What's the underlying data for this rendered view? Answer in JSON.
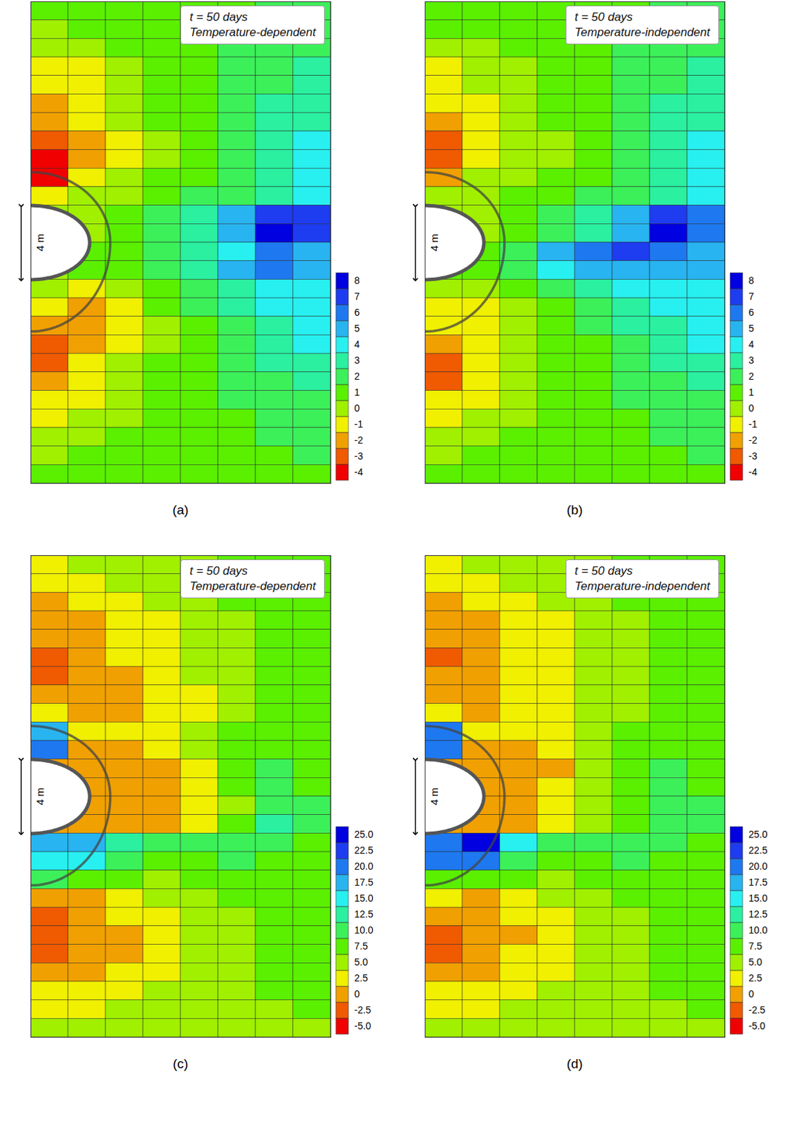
{
  "chart_data": [
    {
      "type": "heatmap",
      "panel_label": "(a)",
      "annotations": [
        "t = 50 days",
        "Temperature-dependent"
      ],
      "scale_bar": {
        "value": 4,
        "label": "4 m"
      },
      "xlim": [
        0,
        10.2
      ],
      "ylim": [
        -13,
        13
      ],
      "tick_labels": false,
      "color_ticks": [
        -4,
        -3,
        -2,
        -1,
        0,
        1,
        2,
        3,
        4,
        5,
        6,
        7,
        8
      ],
      "colors": [
        "#f00000",
        "#f05a00",
        "#f0a000",
        "#f0f000",
        "#a0f000",
        "#5af000",
        "#3cf05a",
        "#2af0a0",
        "#28f0f0",
        "#28b4f0",
        "#1e78f0",
        "#1e3cf0",
        "#0000e0"
      ],
      "cells": [
        [
          1,
          1,
          1,
          1,
          1,
          1,
          2,
          2
        ],
        [
          0,
          1,
          1,
          1,
          1,
          2,
          2,
          2
        ],
        [
          0,
          0,
          1,
          1,
          1,
          2,
          2,
          2
        ],
        [
          -1,
          -1,
          0,
          1,
          1,
          2,
          2,
          3
        ],
        [
          -1,
          -1,
          0,
          1,
          1,
          2,
          2,
          3
        ],
        [
          -2,
          -1,
          0,
          1,
          1,
          2,
          3,
          3
        ],
        [
          -2,
          -1,
          0,
          1,
          1,
          2,
          3,
          3
        ],
        [
          -3,
          -2,
          -1,
          0,
          1,
          2,
          3,
          4
        ],
        [
          -4,
          -2,
          -1,
          0,
          1,
          2,
          3,
          4
        ],
        [
          -4,
          -1,
          0,
          1,
          1,
          2,
          3,
          4
        ],
        [
          -1,
          0,
          0,
          1,
          2,
          2,
          3,
          4
        ],
        [
          0,
          0,
          1,
          2,
          3,
          5,
          7,
          7
        ],
        [
          null,
          0,
          1,
          2,
          3,
          5,
          8,
          7
        ],
        [
          null,
          1,
          1,
          2,
          3,
          4,
          6,
          5
        ],
        [
          0,
          1,
          1,
          2,
          3,
          5,
          6,
          5
        ],
        [
          0,
          -1,
          0,
          1,
          2,
          3,
          4,
          4
        ],
        [
          -1,
          -2,
          -1,
          1,
          2,
          3,
          4,
          4
        ],
        [
          -2,
          -2,
          -1,
          0,
          1,
          2,
          3,
          4
        ],
        [
          -3,
          -2,
          -1,
          0,
          1,
          2,
          3,
          4
        ],
        [
          -3,
          -1,
          0,
          1,
          1,
          2,
          3,
          3
        ],
        [
          -2,
          -1,
          0,
          1,
          1,
          2,
          2,
          3
        ],
        [
          -1,
          -1,
          0,
          1,
          1,
          2,
          2,
          2
        ],
        [
          -1,
          0,
          0,
          1,
          1,
          1,
          2,
          2
        ],
        [
          0,
          0,
          1,
          1,
          1,
          1,
          2,
          2
        ],
        [
          0,
          1,
          1,
          1,
          1,
          1,
          1,
          2
        ],
        [
          1,
          1,
          1,
          1,
          1,
          1,
          1,
          1
        ]
      ]
    },
    {
      "type": "heatmap",
      "panel_label": "(b)",
      "annotations": [
        "t = 50 days",
        "Temperature-independent"
      ],
      "scale_bar": {
        "value": 4,
        "label": "4 m"
      },
      "xlim": [
        0,
        10.2
      ],
      "ylim": [
        -13,
        13
      ],
      "tick_labels": false,
      "color_ticks": [
        -4,
        -3,
        -2,
        -1,
        0,
        1,
        2,
        3,
        4,
        5,
        6,
        7,
        8
      ],
      "colors": [
        "#f00000",
        "#f05a00",
        "#f0a000",
        "#f0f000",
        "#a0f000",
        "#5af000",
        "#3cf05a",
        "#2af0a0",
        "#28f0f0",
        "#28b4f0",
        "#1e78f0",
        "#1e3cf0",
        "#0000e0"
      ],
      "cells": [
        [
          1,
          1,
          1,
          1,
          1,
          1,
          2,
          2
        ],
        [
          1,
          1,
          1,
          1,
          1,
          2,
          2,
          2
        ],
        [
          0,
          0,
          1,
          1,
          1,
          2,
          2,
          2
        ],
        [
          -1,
          0,
          0,
          1,
          1,
          2,
          2,
          3
        ],
        [
          -1,
          0,
          0,
          1,
          1,
          2,
          2,
          3
        ],
        [
          -1,
          -1,
          0,
          1,
          1,
          2,
          3,
          3
        ],
        [
          -2,
          -1,
          0,
          1,
          1,
          2,
          3,
          3
        ],
        [
          -3,
          -1,
          0,
          0,
          1,
          2,
          3,
          4
        ],
        [
          -3,
          -1,
          0,
          0,
          1,
          2,
          3,
          4
        ],
        [
          -2,
          0,
          0,
          1,
          1,
          2,
          3,
          4
        ],
        [
          0,
          0,
          1,
          1,
          2,
          2,
          3,
          4
        ],
        [
          0,
          0,
          1,
          2,
          3,
          5,
          7,
          6
        ],
        [
          null,
          0,
          1,
          2,
          3,
          5,
          8,
          6
        ],
        [
          null,
          1,
          2,
          5,
          6,
          7,
          6,
          5
        ],
        [
          1,
          1,
          2,
          4,
          5,
          5,
          5,
          5
        ],
        [
          0,
          0,
          1,
          2,
          3,
          4,
          4,
          4
        ],
        [
          -1,
          -1,
          0,
          1,
          2,
          3,
          4,
          4
        ],
        [
          -1,
          -1,
          0,
          1,
          2,
          3,
          3,
          4
        ],
        [
          -2,
          -1,
          0,
          1,
          1,
          2,
          3,
          4
        ],
        [
          -3,
          -1,
          0,
          1,
          1,
          2,
          3,
          3
        ],
        [
          -3,
          -1,
          0,
          1,
          1,
          2,
          2,
          3
        ],
        [
          -1,
          -1,
          0,
          1,
          1,
          2,
          2,
          2
        ],
        [
          -1,
          0,
          0,
          1,
          1,
          1,
          2,
          2
        ],
        [
          0,
          0,
          1,
          1,
          1,
          1,
          2,
          2
        ],
        [
          0,
          1,
          1,
          1,
          1,
          1,
          1,
          2
        ],
        [
          1,
          1,
          1,
          1,
          1,
          1,
          1,
          1
        ]
      ]
    },
    {
      "type": "heatmap",
      "panel_label": "(c)",
      "annotations": [
        "t = 50 days",
        "Temperature-dependent"
      ],
      "scale_bar": {
        "value": 4,
        "label": "4 m"
      },
      "xlim": [
        0,
        10.2
      ],
      "ylim": [
        -13,
        13
      ],
      "tick_labels": false,
      "color_ticks": [
        {
          "value": -5,
          "label": "-5.0"
        },
        -2.5,
        0,
        2.5,
        {
          "value": 5,
          "label": "5.0"
        },
        7.5,
        {
          "value": 10,
          "label": "10.0"
        },
        12.5,
        {
          "value": 15,
          "label": "15.0"
        },
        17.5,
        {
          "value": 20,
          "label": "20.0"
        },
        22.5,
        {
          "value": 25,
          "label": "25.0"
        }
      ],
      "colors": [
        "#f00000",
        "#f05a00",
        "#f0a000",
        "#f0f000",
        "#a0f000",
        "#5af000",
        "#3cf05a",
        "#2af0a0",
        "#28f0f0",
        "#28b4f0",
        "#1e78f0",
        "#1e3cf0",
        "#0000e0"
      ],
      "cells": [
        [
          2.5,
          5,
          5,
          5,
          5,
          7.5,
          7.5,
          7.5
        ],
        [
          2.5,
          2.5,
          5,
          5,
          5,
          7.5,
          7.5,
          7.5
        ],
        [
          0,
          2.5,
          2.5,
          5,
          5,
          7.5,
          7.5,
          7.5
        ],
        [
          0,
          0,
          2.5,
          2.5,
          5,
          5,
          7.5,
          7.5
        ],
        [
          0,
          0,
          2.5,
          2.5,
          5,
          5,
          7.5,
          7.5
        ],
        [
          -2.5,
          0,
          2.5,
          2.5,
          5,
          5,
          7.5,
          7.5
        ],
        [
          -2.5,
          0,
          0,
          2.5,
          5,
          5,
          7.5,
          7.5
        ],
        [
          0,
          0,
          0,
          2.5,
          2.5,
          5,
          7.5,
          7.5
        ],
        [
          2.5,
          0,
          0,
          2.5,
          2.5,
          5,
          7.5,
          7.5
        ],
        [
          17.5,
          2.5,
          2.5,
          2.5,
          5,
          7.5,
          7.5,
          7.5
        ],
        [
          20,
          0,
          0,
          2.5,
          5,
          7.5,
          7.5,
          7.5
        ],
        [
          0,
          0,
          0,
          0,
          2.5,
          7.5,
          10,
          7.5
        ],
        [
          null,
          0,
          0,
          0,
          2.5,
          7.5,
          10,
          7.5
        ],
        [
          null,
          0,
          0,
          0,
          2.5,
          5,
          10,
          10
        ],
        [
          0,
          0,
          0,
          0,
          2.5,
          7.5,
          12.5,
          10
        ],
        [
          17.5,
          17.5,
          12.5,
          10,
          10,
          10,
          10,
          7.5
        ],
        [
          15,
          15,
          10,
          7.5,
          7.5,
          10,
          7.5,
          7.5
        ],
        [
          10,
          7.5,
          7.5,
          5,
          7.5,
          7.5,
          7.5,
          7.5
        ],
        [
          0,
          0,
          2.5,
          5,
          5,
          7.5,
          7.5,
          7.5
        ],
        [
          -2.5,
          0,
          2.5,
          2.5,
          5,
          5,
          7.5,
          7.5
        ],
        [
          -2.5,
          0,
          0,
          2.5,
          5,
          5,
          7.5,
          7.5
        ],
        [
          -2.5,
          0,
          0,
          2.5,
          5,
          5,
          7.5,
          7.5
        ],
        [
          0,
          0,
          2.5,
          2.5,
          5,
          5,
          7.5,
          7.5
        ],
        [
          2.5,
          2.5,
          2.5,
          5,
          5,
          5,
          7.5,
          7.5
        ],
        [
          2.5,
          2.5,
          5,
          5,
          5,
          5,
          5,
          7.5
        ],
        [
          5,
          5,
          5,
          5,
          5,
          5,
          5,
          5
        ]
      ]
    },
    {
      "type": "heatmap",
      "panel_label": "(d)",
      "annotations": [
        "t = 50 days",
        "Temperature-independent"
      ],
      "scale_bar": {
        "value": 4,
        "label": "4 m"
      },
      "xlim": [
        0,
        10.2
      ],
      "ylim": [
        -13,
        13
      ],
      "tick_labels": false,
      "color_ticks": [
        {
          "value": -5,
          "label": "-5.0"
        },
        -2.5,
        0,
        2.5,
        {
          "value": 5,
          "label": "5.0"
        },
        7.5,
        {
          "value": 10,
          "label": "10.0"
        },
        12.5,
        {
          "value": 15,
          "label": "15.0"
        },
        17.5,
        {
          "value": 20,
          "label": "20.0"
        },
        22.5,
        {
          "value": 25,
          "label": "25.0"
        }
      ],
      "colors": [
        "#f00000",
        "#f05a00",
        "#f0a000",
        "#f0f000",
        "#a0f000",
        "#5af000",
        "#3cf05a",
        "#2af0a0",
        "#28f0f0",
        "#28b4f0",
        "#1e78f0",
        "#1e3cf0",
        "#0000e0"
      ],
      "cells": [
        [
          2.5,
          5,
          5,
          5,
          5,
          7.5,
          7.5,
          7.5
        ],
        [
          2.5,
          2.5,
          5,
          5,
          5,
          7.5,
          7.5,
          7.5
        ],
        [
          0,
          2.5,
          2.5,
          5,
          5,
          7.5,
          7.5,
          7.5
        ],
        [
          0,
          0,
          2.5,
          2.5,
          5,
          5,
          7.5,
          7.5
        ],
        [
          0,
          0,
          2.5,
          2.5,
          5,
          5,
          7.5,
          7.5
        ],
        [
          -2.5,
          0,
          2.5,
          2.5,
          5,
          5,
          7.5,
          7.5
        ],
        [
          0,
          0,
          2.5,
          2.5,
          5,
          5,
          7.5,
          7.5
        ],
        [
          0,
          0,
          2.5,
          2.5,
          5,
          5,
          7.5,
          7.5
        ],
        [
          2.5,
          0,
          2.5,
          2.5,
          5,
          5,
          7.5,
          7.5
        ],
        [
          20,
          2.5,
          2.5,
          2.5,
          5,
          7.5,
          7.5,
          7.5
        ],
        [
          20,
          0,
          0,
          2.5,
          5,
          7.5,
          7.5,
          7.5
        ],
        [
          0,
          0,
          0,
          0,
          5,
          7.5,
          10,
          7.5
        ],
        [
          null,
          0,
          0,
          2.5,
          5,
          7.5,
          10,
          7.5
        ],
        [
          null,
          0,
          0,
          2.5,
          5,
          7.5,
          10,
          10
        ],
        [
          0,
          0,
          0,
          2.5,
          5,
          7.5,
          10,
          10
        ],
        [
          20,
          25,
          15,
          10,
          10,
          10,
          10,
          7.5
        ],
        [
          20,
          20,
          10,
          7.5,
          7.5,
          10,
          7.5,
          7.5
        ],
        [
          7.5,
          7.5,
          7.5,
          5,
          7.5,
          7.5,
          7.5,
          7.5
        ],
        [
          2.5,
          0,
          2.5,
          5,
          5,
          7.5,
          7.5,
          7.5
        ],
        [
          0,
          0,
          2.5,
          2.5,
          5,
          5,
          7.5,
          7.5
        ],
        [
          -2.5,
          0,
          0,
          2.5,
          5,
          5,
          7.5,
          7.5
        ],
        [
          -2.5,
          0,
          2.5,
          2.5,
          5,
          5,
          7.5,
          7.5
        ],
        [
          0,
          0,
          2.5,
          2.5,
          5,
          5,
          7.5,
          7.5
        ],
        [
          2.5,
          2.5,
          2.5,
          5,
          5,
          5,
          7.5,
          7.5
        ],
        [
          2.5,
          2.5,
          5,
          5,
          5,
          5,
          5,
          7.5
        ],
        [
          5,
          5,
          5,
          5,
          5,
          5,
          5,
          5
        ]
      ]
    }
  ]
}
